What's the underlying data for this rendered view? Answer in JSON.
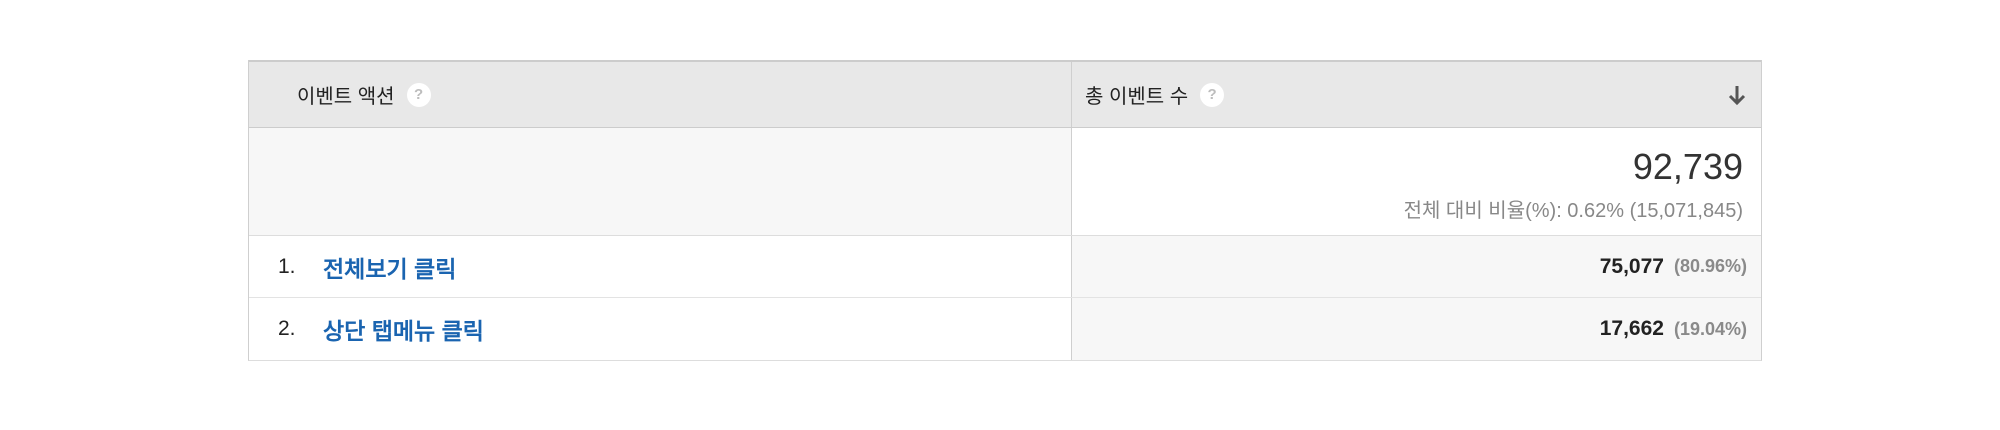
{
  "table": {
    "header": {
      "dimension_label": "이벤트 액션",
      "metric_label": "총 이벤트 수",
      "help_glyph": "?",
      "sort_icon": "arrow-down-icon"
    },
    "totals": {
      "value": "92,739",
      "subtext": "전체 대비 비율(%): 0.62% (15,071,845)"
    },
    "rows": [
      {
        "index": "1.",
        "label": "전체보기 클릭",
        "value": "75,077",
        "percent": "(80.96%)"
      },
      {
        "index": "2.",
        "label": "상단 탭메뉴 클릭",
        "value": "17,662",
        "percent": "(19.04%)"
      }
    ]
  },
  "colors": {
    "header_bg": "#e8e8e8",
    "link": "#1a64b0",
    "muted": "#888888"
  }
}
